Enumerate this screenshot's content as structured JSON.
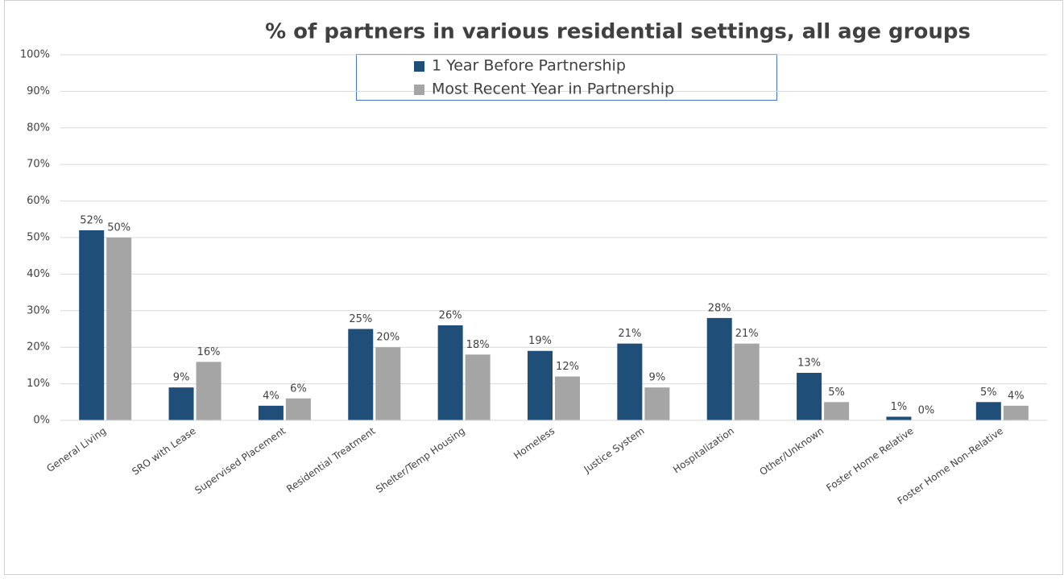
{
  "chart_data": {
    "type": "bar",
    "title": "% of partners in various residential settings, all age groups",
    "categories": [
      "General Living",
      "SRO with Lease",
      "Supervised Placement",
      "Residential Treatment",
      "Shelter/Temp Housing",
      "Homeless",
      "Justice System",
      "Hospitalization",
      "Other/Unknown",
      "Foster Home Relative",
      "Foster Home Non-Relative"
    ],
    "series": [
      {
        "name": "1 Year Before Partnership",
        "color": "#1f4e79",
        "values": [
          52,
          9,
          4,
          25,
          26,
          19,
          21,
          28,
          13,
          1,
          5
        ],
        "value_labels": [
          "52%",
          "9%",
          "4%",
          "25%",
          "26%",
          "19%",
          "21%",
          "28%",
          "13%",
          "1%",
          "5%"
        ]
      },
      {
        "name": "Most Recent Year in Partnership",
        "color": "#a5a5a5",
        "values": [
          50,
          16,
          6,
          20,
          18,
          12,
          9,
          21,
          5,
          0,
          4
        ],
        "value_labels": [
          "50%",
          "16%",
          "6%",
          "20%",
          "18%",
          "12%",
          "9%",
          "21%",
          "5%",
          "0%",
          "4%"
        ]
      }
    ],
    "ylim": [
      0,
      100
    ],
    "yticks": [
      {
        "value": 0,
        "label": "0%"
      },
      {
        "value": 10,
        "label": "10%"
      },
      {
        "value": 20,
        "label": "20%"
      },
      {
        "value": 30,
        "label": "30%"
      },
      {
        "value": 40,
        "label": "40%"
      },
      {
        "value": 50,
        "label": "50%"
      },
      {
        "value": 60,
        "label": "60%"
      },
      {
        "value": 70,
        "label": "70%"
      },
      {
        "value": 80,
        "label": "80%"
      },
      {
        "value": 90,
        "label": "90%"
      },
      {
        "value": 100,
        "label": "100%"
      }
    ],
    "grid": true,
    "legend": "top"
  }
}
